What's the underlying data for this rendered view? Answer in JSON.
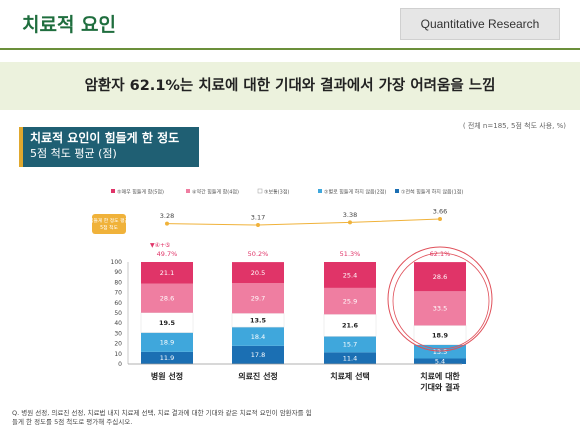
{
  "header": {
    "title": "치료적 요인",
    "tag": "Quantitative Research",
    "headline": "암환자 62.1%는 치료에 대한 기대와 결과에서 가장 어려움을 느낌",
    "note": "( 전체 n=185, 5점 척도 사용, %)"
  },
  "section": {
    "line1": "치료적 요인이 힘들게 한 정도",
    "line2": "5점 척도 평균 (점)"
  },
  "question": "Q. 병원 선정, 의료진 선정, 치료법 내지 치료제 선택, 치료 결과에 대한 기대와 같은 치료적 요인이 암환자를 힘들게 한 정도를 5점 척도로 평가해 주십시오.",
  "colors": {
    "very_hard": "#e03468",
    "hard": "#ef7ea1",
    "neutral": "#ffffff",
    "not_hard": "#3fa7dc",
    "not_at_all": "#1b6fb3",
    "mean_line": "#f0b23a",
    "highlight": "#e0505a"
  },
  "chart_data": {
    "type": "bar",
    "stacked": true,
    "percent": true,
    "categories": [
      "병원 선정",
      "의료진 선정",
      "치료제 선택",
      "치료에 대한\n기대와 결과"
    ],
    "series": [
      {
        "name": "①전혀 힘들게 하지 않음(1점)",
        "values": [
          11.9,
          17.8,
          11.4,
          5.4
        ]
      },
      {
        "name": "②별로 힘들게 하지 않음(2점)",
        "values": [
          18.9,
          18.4,
          15.7,
          13.5
        ]
      },
      {
        "name": "③보통(3점)",
        "values": [
          19.5,
          13.5,
          21.6,
          18.9
        ]
      },
      {
        "name": "④약간 힘들게 함(4점)",
        "values": [
          28.6,
          29.7,
          25.9,
          33.5
        ]
      },
      {
        "name": "⑤매우 힘들게 함(5점)",
        "values": [
          21.1,
          20.5,
          25.4,
          28.6
        ]
      }
    ],
    "legend_order": [
      4,
      3,
      2,
      1,
      0
    ],
    "top2": {
      "label": "▼④+⑤",
      "values": [
        "49.7%",
        "50.2%",
        "51.3%",
        "62.1%"
      ]
    },
    "mean": {
      "label": "힘들게 한 정도 평균",
      "values": [
        3.28,
        3.17,
        3.38,
        3.66
      ]
    },
    "ylim": [
      0,
      100
    ],
    "yticks": [
      0,
      10,
      20,
      30,
      40,
      50,
      60,
      70,
      80,
      90,
      100
    ],
    "legend_position": "top",
    "highlight_category": 3
  }
}
